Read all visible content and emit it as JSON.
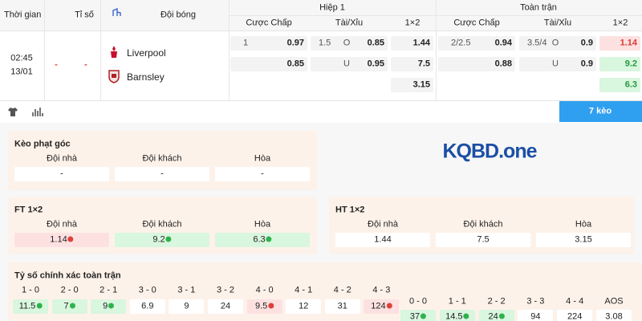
{
  "header": {
    "time": "Thời gian",
    "score": "Tỉ số",
    "team": "Đội bóng",
    "half": {
      "title": "Hiệp 1",
      "cols": [
        "Cược Chấp",
        "Tài/Xỉu",
        "1×2"
      ]
    },
    "full": {
      "title": "Toàn trận",
      "cols": [
        "Cược Chấp",
        "Tài/Xỉu",
        "1×2"
      ]
    }
  },
  "match": {
    "time": "02:45",
    "date": "13/01",
    "score_home": "-",
    "score_away": "-",
    "teams": [
      "Liverpool",
      "Barnsley"
    ],
    "half": {
      "handicap": [
        {
          "line": "1",
          "odds": "0.97"
        },
        {
          "odds": "0.85"
        }
      ],
      "total": [
        {
          "line": "1.5",
          "side": "O",
          "odds": "0.85"
        },
        {
          "side": "U",
          "odds": "0.95"
        }
      ],
      "x12": [
        {
          "odds": "1.44"
        },
        {
          "odds": "7.5"
        },
        {
          "odds": "3.15"
        }
      ]
    },
    "full": {
      "handicap": [
        {
          "line": "2/2.5",
          "odds": "0.94"
        },
        {
          "odds": "0.88"
        }
      ],
      "total": [
        {
          "line": "3.5/4",
          "side": "O",
          "odds": "0.9"
        },
        {
          "side": "U",
          "odds": "0.9"
        }
      ],
      "x12": [
        {
          "odds": "1.14",
          "trend": "down"
        },
        {
          "odds": "9.2",
          "trend": "up"
        },
        {
          "odds": "6.3",
          "trend": "up"
        }
      ]
    }
  },
  "tabs": {
    "button": "7 kèo"
  },
  "logo": "KQBD.one",
  "panels": {
    "corner": {
      "title": "Kèo phạt góc",
      "cols": [
        "Đội nhà",
        "Đội khách",
        "Hòa"
      ],
      "values": [
        {
          "odds": "-"
        },
        {
          "odds": "-"
        },
        {
          "odds": "-"
        }
      ]
    },
    "ft": {
      "title": "FT 1×2",
      "cols": [
        "Đội nhà",
        "Đội khách",
        "Hòa"
      ],
      "values": [
        {
          "odds": "1.14",
          "trend": "down"
        },
        {
          "odds": "9.2",
          "trend": "up"
        },
        {
          "odds": "6.3",
          "trend": "up"
        }
      ]
    },
    "ht": {
      "title": "HT 1×2",
      "cols": [
        "Đội nhà",
        "Đội khách",
        "Hòa"
      ],
      "values": [
        {
          "odds": "1.44"
        },
        {
          "odds": "7.5"
        },
        {
          "odds": "3.15"
        }
      ]
    },
    "exact": {
      "title": "Tỷ số chính xác toàn trận",
      "rows": [
        [
          {
            "score": "1 - 0",
            "odds": "11.5",
            "trend": "up"
          },
          {
            "score": "2 - 0",
            "odds": "7",
            "trend": "up"
          },
          {
            "score": "2 - 1",
            "odds": "9",
            "trend": "up"
          },
          {
            "score": "3 - 0",
            "odds": "6.9"
          },
          {
            "score": "3 - 1",
            "odds": "9"
          },
          {
            "score": "3 - 2",
            "odds": "24"
          },
          {
            "score": "4 - 0",
            "odds": "9.5",
            "trend": "down"
          },
          {
            "score": "4 - 1",
            "odds": "12"
          },
          {
            "score": "4 - 2",
            "odds": "31"
          },
          {
            "score": "4 - 3",
            "odds": "124",
            "trend": "down"
          }
        ],
        [
          {
            "score": "0 - 0",
            "odds": "37",
            "trend": "up"
          },
          {
            "score": "1 - 1",
            "odds": "14.5",
            "trend": "up"
          },
          {
            "score": "2 - 2",
            "odds": "24",
            "trend": "up"
          },
          {
            "score": "3 - 3",
            "odds": "94"
          },
          {
            "score": "4 - 4",
            "odds": "224"
          },
          {
            "score": "AOS",
            "odds": "3.08"
          }
        ]
      ]
    }
  }
}
